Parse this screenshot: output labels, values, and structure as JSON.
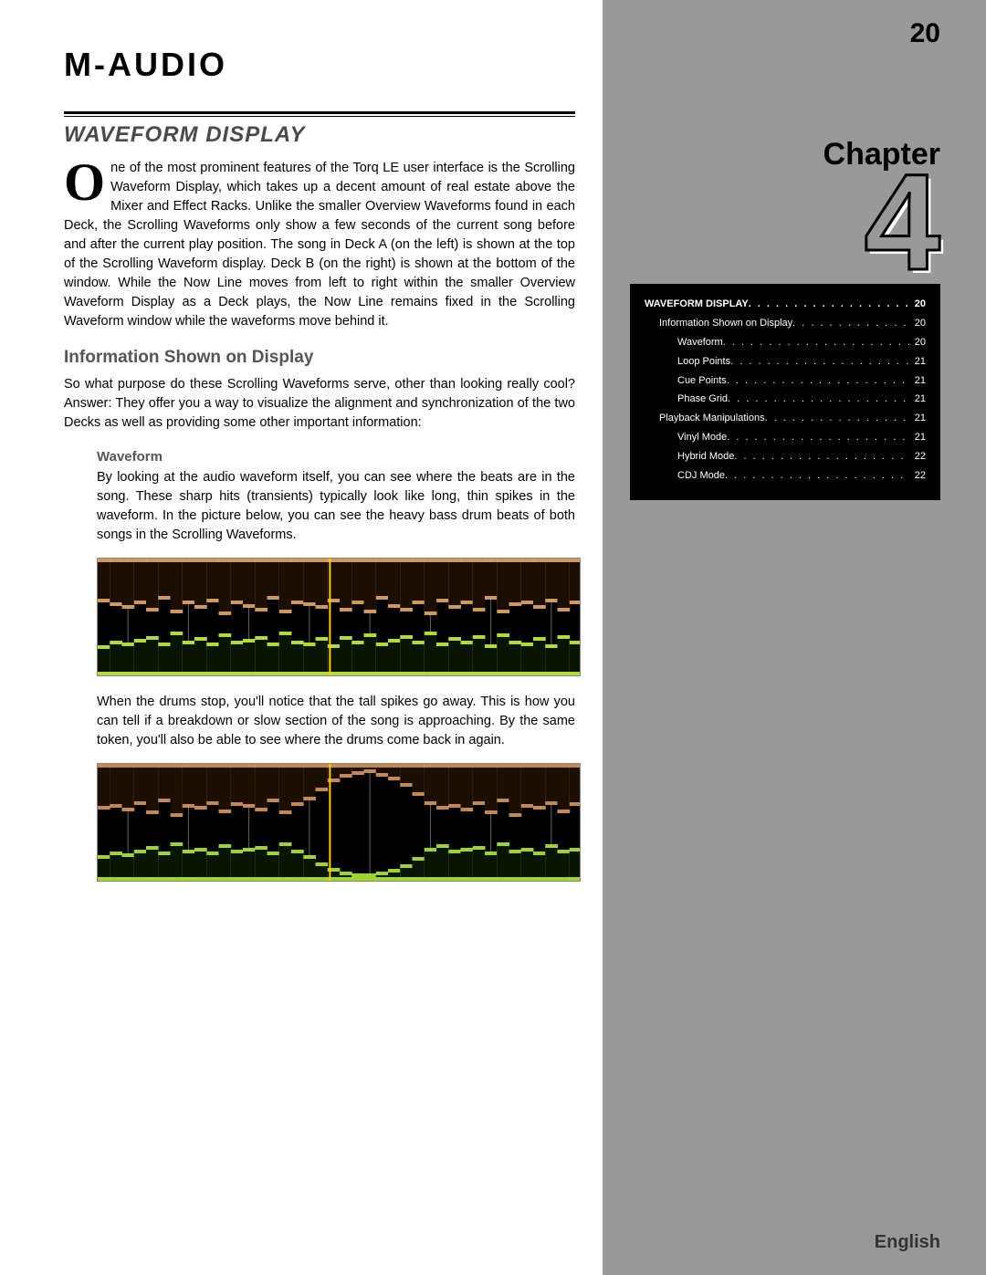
{
  "logo": "M-AUDIO",
  "page_number": "20",
  "chapter_label": "Chapter",
  "chapter_number": "4",
  "language": "English",
  "section_title": "WAVEFORM DISPLAY",
  "intro_dropcap": "O",
  "intro_text": "ne of the most prominent features of the Torq LE user interface is the Scrolling Waveform Display, which takes up a decent amount of real estate above the Mixer and Effect Racks. Unlike the smaller Overview Waveforms found in each Deck, the Scrolling Waveforms only show a few seconds of the current song before and after the current play position. The song in Deck A (on the left) is shown at the top of the Scrolling Waveform display. Deck B (on the right) is shown at the bottom of the window. While the Now Line moves from left to right within the smaller Overview Waveform Display as a Deck plays, the Now Line remains fixed in the Scrolling Waveform window while the waveforms move behind it.",
  "sub_heading": "Information Shown on Display",
  "sub_text": "So what purpose do these Scrolling Waveforms serve, other than looking really cool? Answer: They offer you a way to visualize the alignment and synchronization of the two Decks as well as providing some other important information:",
  "subsub_heading": "Waveform",
  "subsub_text1": "By looking at the audio waveform itself, you can see where the beats are in the song. These sharp hits (transients) typically look like long, thin spikes in the waveform. In the picture below, you can see the heavy bass drum beats of both songs in the Scrolling Waveforms.",
  "subsub_text2": "When the drums stop, you'll notice that the tall spikes go away. This is how you can tell if a breakdown or slow section of the song is approaching. By the same token, you'll also be able to see where the drums come back in again.",
  "waveform_style": {
    "box_bg": "#000000",
    "box_border": "#888888",
    "top_color_a": "#e8a968",
    "bottom_color_a": "#b8e838",
    "top_color_b": "#d89858",
    "bottom_color_b": "#a8e028",
    "nowline_color": "#ffcc00",
    "grid_color": "#666666"
  },
  "waveform1": {
    "top_heights": [
      48,
      52,
      55,
      50,
      58,
      45,
      60,
      50,
      55,
      48,
      62,
      50,
      54,
      58,
      45,
      60,
      50,
      52,
      55,
      48,
      58,
      50,
      60,
      45,
      54,
      58,
      50,
      62,
      48,
      55,
      50,
      58,
      45,
      60,
      52,
      50,
      55,
      48,
      58,
      50
    ],
    "bot_heights": [
      35,
      40,
      38,
      42,
      45,
      38,
      50,
      40,
      44,
      38,
      48,
      40,
      42,
      45,
      38,
      50,
      40,
      38,
      44,
      36,
      45,
      40,
      48,
      38,
      42,
      46,
      40,
      50,
      38,
      44,
      40,
      46,
      36,
      48,
      40,
      38,
      44,
      36,
      46,
      40
    ]
  },
  "waveform2": {
    "top_heights": [
      50,
      48,
      52,
      45,
      55,
      42,
      58,
      48,
      50,
      45,
      54,
      46,
      48,
      52,
      42,
      55,
      46,
      40,
      30,
      20,
      15,
      12,
      10,
      14,
      18,
      25,
      35,
      45,
      50,
      48,
      52,
      45,
      55,
      42,
      58,
      48,
      50,
      45,
      54,
      46
    ],
    "bot_heights": [
      30,
      34,
      32,
      36,
      40,
      34,
      44,
      36,
      38,
      34,
      42,
      36,
      38,
      40,
      34,
      44,
      36,
      30,
      22,
      16,
      12,
      10,
      10,
      12,
      15,
      20,
      28,
      38,
      42,
      36,
      38,
      40,
      34,
      44,
      36,
      38,
      34,
      42,
      36,
      38
    ]
  },
  "toc": [
    {
      "level": 0,
      "label": "WAVEFORM DISPLAY",
      "page": "20"
    },
    {
      "level": 1,
      "label": "Information Shown on Display",
      "page": "20"
    },
    {
      "level": 2,
      "label": "Waveform",
      "page": "20"
    },
    {
      "level": 2,
      "label": "Loop Points",
      "page": "21"
    },
    {
      "level": 2,
      "label": "Cue Points",
      "page": "21"
    },
    {
      "level": 2,
      "label": "Phase Grid",
      "page": "21"
    },
    {
      "level": 1,
      "label": "Playback Manipulations",
      "page": "21"
    },
    {
      "level": 2,
      "label": "Vinyl Mode",
      "page": "21"
    },
    {
      "level": 2,
      "label": "Hybrid Mode",
      "page": "22"
    },
    {
      "level": 2,
      "label": "CDJ Mode",
      "page": "22"
    }
  ]
}
